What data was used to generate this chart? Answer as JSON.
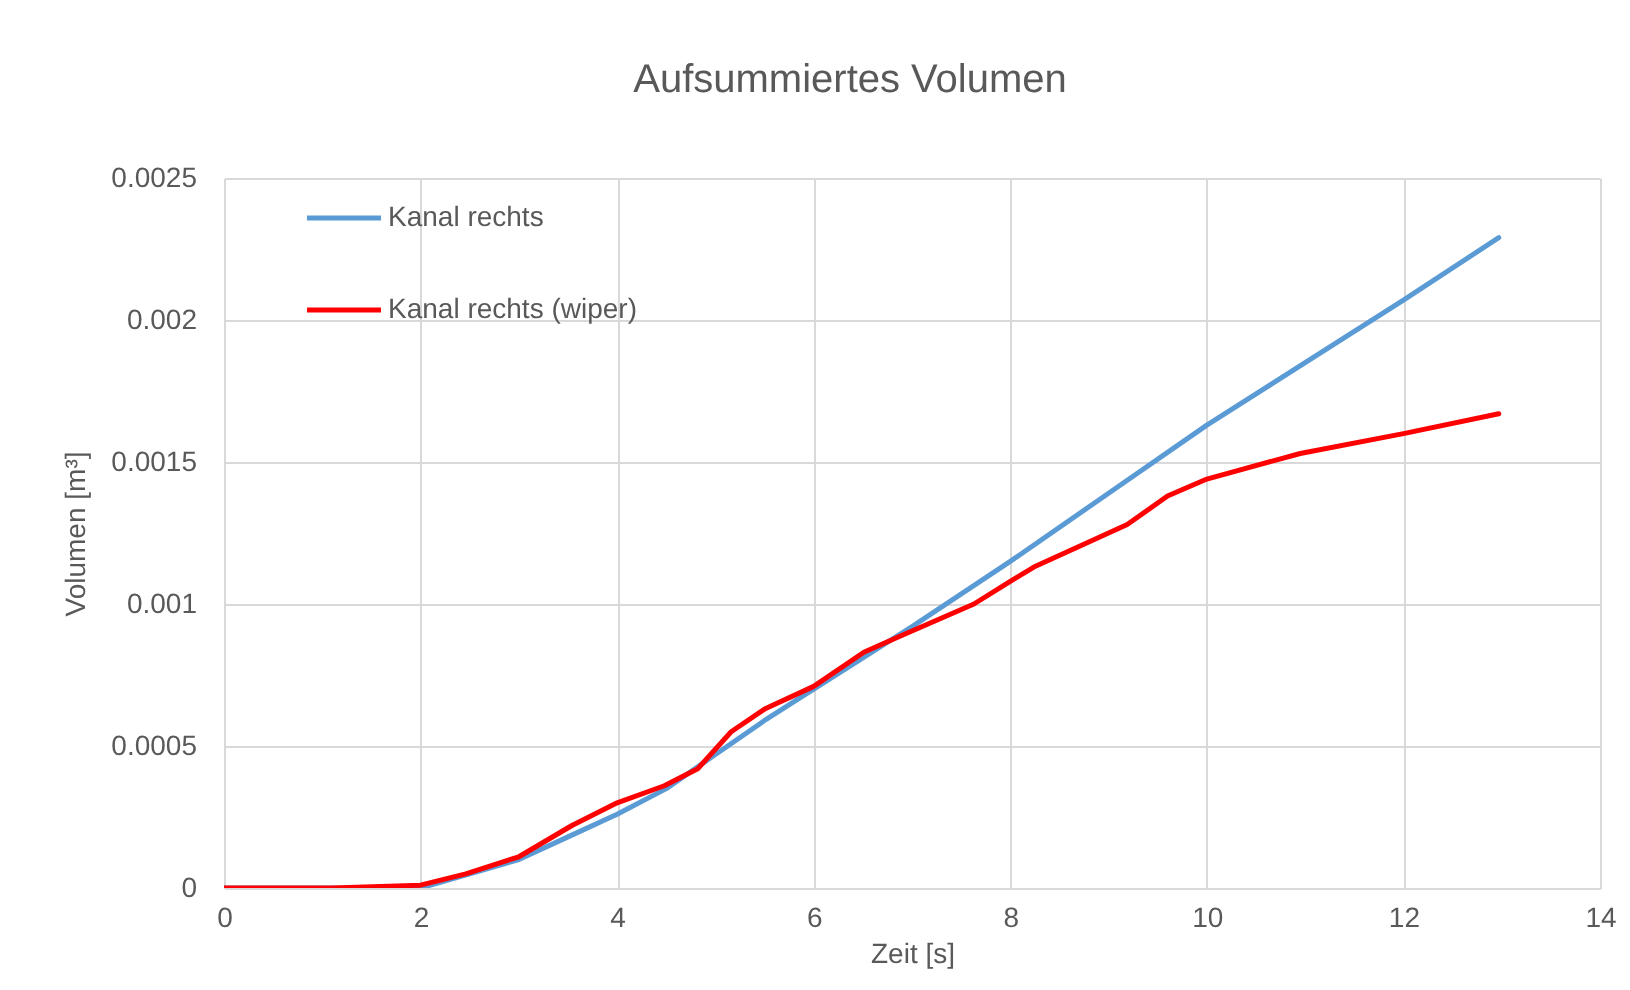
{
  "chart_data": {
    "type": "line",
    "title": "Aufsummiertes Volumen",
    "xlabel": "Zeit [s]",
    "ylabel": "Volumen [m³]",
    "xlim": [
      0,
      14
    ],
    "xticks": [
      0,
      2,
      4,
      6,
      8,
      10,
      12,
      14
    ],
    "ylim": [
      0,
      0.0025
    ],
    "yticks": [
      0,
      0.0005,
      0.001,
      0.0015,
      0.002,
      0.0025
    ],
    "grid": true,
    "legend": "top left",
    "series": [
      {
        "name": "Kanal rechts",
        "color": "#5b9bd5",
        "x": [
          0,
          1.2,
          2,
          2.5,
          3,
          3.5,
          4,
          4.5,
          5,
          5.5,
          6,
          6.5,
          7,
          8,
          9,
          10,
          11,
          12,
          12.97
        ],
        "values": [
          0,
          0,
          0,
          5e-05,
          0.0001,
          0.00018,
          0.00026,
          0.00035,
          0.00047,
          0.00059,
          0.0007,
          0.00081,
          0.00092,
          0.00115,
          0.00139,
          0.00163,
          0.00185,
          0.00207,
          0.00229
        ]
      },
      {
        "name": "Kanal rechts (wiper)",
        "color": "#ff0000",
        "x": [
          0,
          1.1,
          2,
          2.46,
          3,
          3.54,
          4,
          4.48,
          4.82,
          5.16,
          5.5,
          6,
          6.51,
          6.9,
          7.63,
          8,
          8.24,
          9.19,
          9.6,
          10,
          10.95,
          12,
          12.97
        ],
        "values": [
          0,
          0,
          1e-05,
          5e-05,
          0.00011,
          0.00022,
          0.0003,
          0.00036,
          0.00042,
          0.00055,
          0.00063,
          0.00071,
          0.00083,
          0.00089,
          0.001,
          0.00108,
          0.00113,
          0.00128,
          0.00138,
          0.00144,
          0.00153,
          0.0016,
          0.00167
        ]
      }
    ]
  }
}
